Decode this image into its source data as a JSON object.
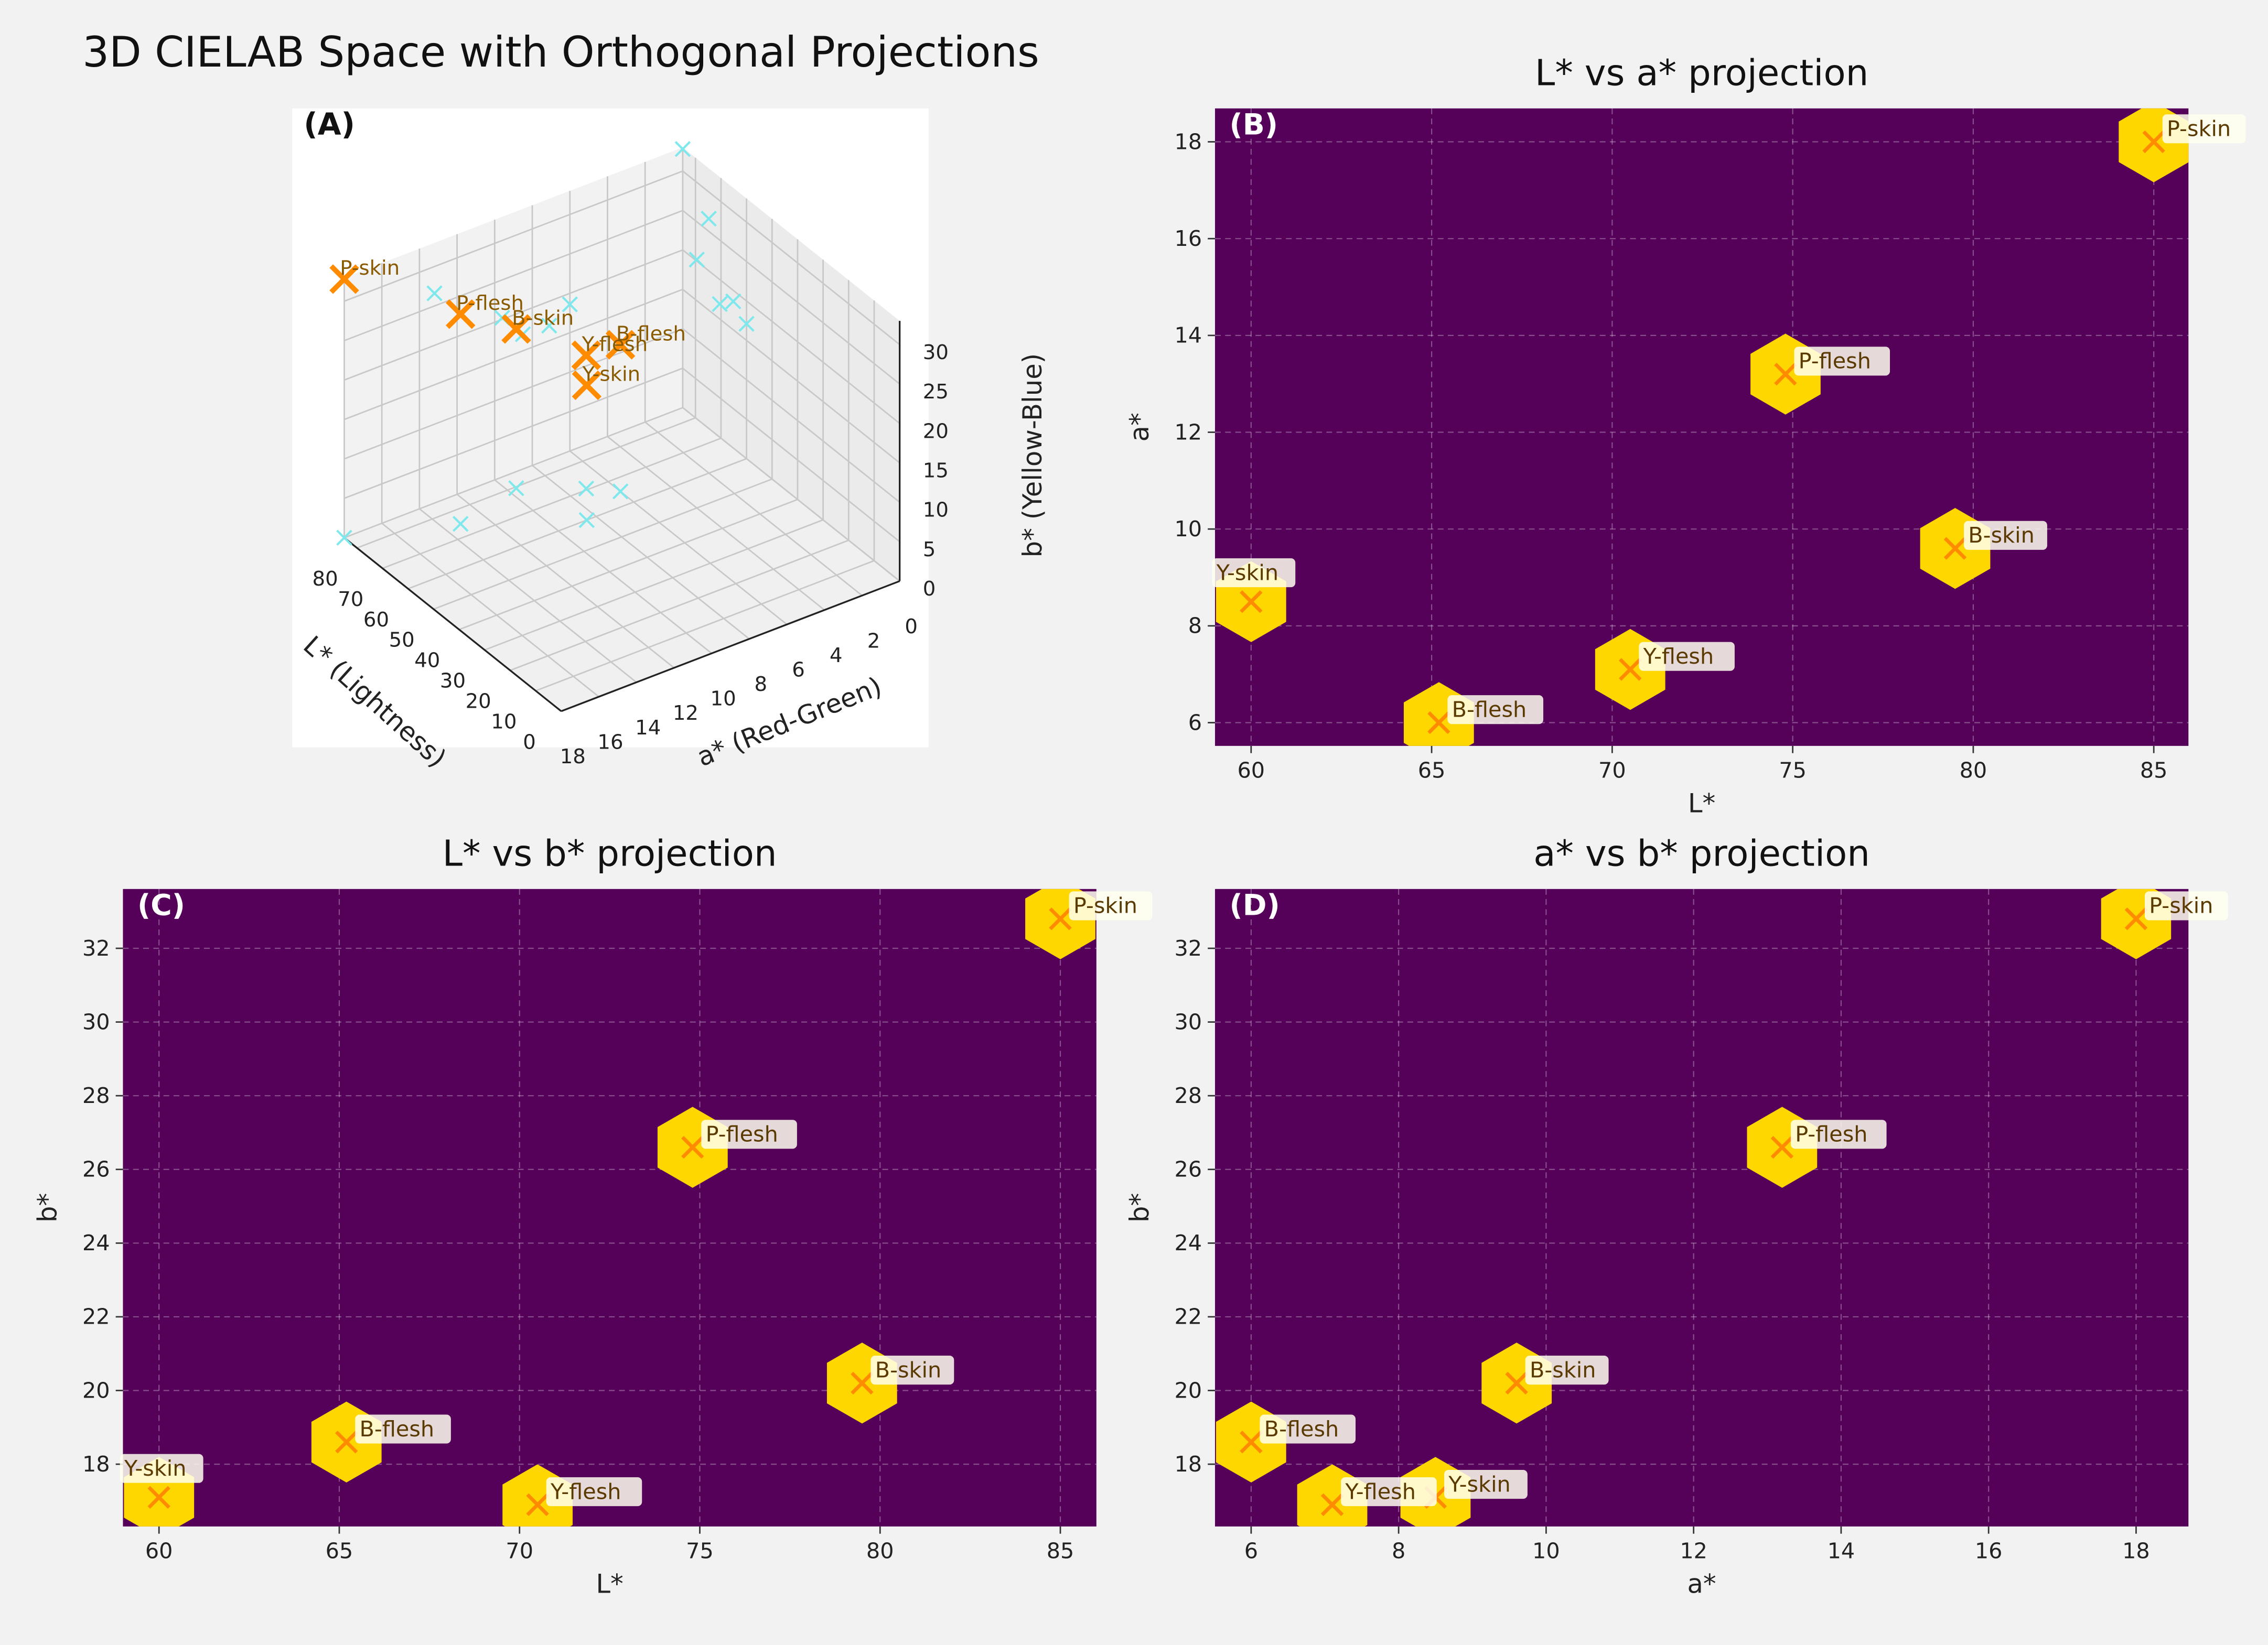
{
  "title": "3D CIELAB Space with Orthogonal Projections",
  "colors": {
    "background": "#f2f2f2",
    "plot_bg": "#550059",
    "hex": "#ffd700",
    "marker": "#ff8c00",
    "projection": "#7fe8ec",
    "label_text": "#5a3a00"
  },
  "chart_data": [
    {
      "type": "scatter3d",
      "panel": "(A)",
      "xlabel": "L* (Lightness)",
      "ylabel": "a* (Red-Green)",
      "zlabel": "b* (Yellow-Blue)",
      "xticks": [
        0,
        10,
        20,
        30,
        40,
        50,
        60,
        70,
        80
      ],
      "yticks": [
        0,
        2,
        4,
        6,
        8,
        10,
        12,
        14,
        16,
        18
      ],
      "zticks": [
        0,
        5,
        10,
        15,
        20,
        25,
        30
      ],
      "xlim": [
        0,
        85
      ],
      "ylim": [
        0,
        18
      ],
      "zlim": [
        0,
        33
      ],
      "points": [
        {
          "name": "P-skin",
          "L": 85,
          "a": 18,
          "b": 32.8
        },
        {
          "name": "P-flesh",
          "L": 74.8,
          "a": 13.2,
          "b": 26.6
        },
        {
          "name": "B-skin",
          "L": 79.5,
          "a": 9.6,
          "b": 20.2
        },
        {
          "name": "B-flesh",
          "L": 65.2,
          "a": 6.0,
          "b": 18.6
        },
        {
          "name": "Y-skin",
          "L": 60,
          "a": 8.5,
          "b": 17.1
        },
        {
          "name": "Y-flesh",
          "L": 70.5,
          "a": 7.1,
          "b": 16.9
        }
      ]
    },
    {
      "type": "scatter",
      "panel": "(B)",
      "title": "L* vs a* projection",
      "xlabel": "L*",
      "ylabel": "a*",
      "x_key": "L",
      "y_key": "a",
      "xlim": [
        59,
        85.96
      ],
      "ylim": [
        5.52,
        18.69
      ],
      "xticks": [
        60,
        65,
        70,
        75,
        80,
        85
      ],
      "yticks": [
        6,
        8,
        10,
        12,
        14,
        16,
        18
      ],
      "grid": true
    },
    {
      "type": "scatter",
      "panel": "(C)",
      "title": "L* vs b* projection",
      "xlabel": "L*",
      "ylabel": "b*",
      "x_key": "L",
      "y_key": "b",
      "xlim": [
        59,
        86
      ],
      "ylim": [
        16.31,
        33.61
      ],
      "xticks": [
        60,
        65,
        70,
        75,
        80,
        85
      ],
      "yticks": [
        18,
        20,
        22,
        24,
        26,
        28,
        30,
        32
      ],
      "grid": true
    },
    {
      "type": "scatter",
      "panel": "(D)",
      "title": "a* vs b* projection",
      "xlabel": "a*",
      "ylabel": "b*",
      "x_key": "a",
      "y_key": "b",
      "xlim": [
        5.51,
        18.71
      ],
      "ylim": [
        16.31,
        33.61
      ],
      "xticks": [
        6,
        8,
        10,
        12,
        14,
        16,
        18
      ],
      "yticks": [
        18,
        20,
        22,
        24,
        26,
        28,
        30,
        32
      ],
      "grid": true
    }
  ]
}
